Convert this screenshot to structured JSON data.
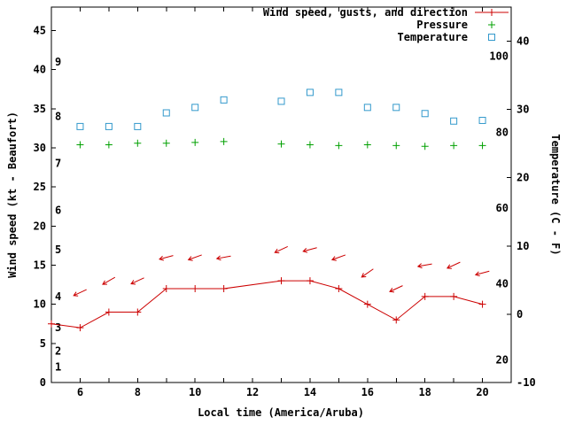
{
  "chart_data": {
    "type": "line",
    "title": "",
    "xlabel": "Local time (America/Aruba)",
    "ylabel_left": "Wind speed (kt - Beaufort)",
    "ylabel_right": "Temperature (C - F)",
    "x_range": [
      5,
      21
    ],
    "x_tick_hours": [
      5,
      6,
      7,
      8,
      9,
      10,
      11,
      12,
      13,
      14,
      15,
      16,
      17,
      18,
      19,
      20,
      21
    ],
    "x_ticks_labeled": [
      6,
      8,
      10,
      12,
      14,
      16,
      18,
      20
    ],
    "y_left_range": [
      0,
      48
    ],
    "y_left_ticks": [
      0,
      5,
      10,
      15,
      20,
      25,
      30,
      35,
      40,
      45
    ],
    "beaufort_scale_labels": [
      {
        "label": "1",
        "kt": 2
      },
      {
        "label": "2",
        "kt": 4
      },
      {
        "label": "3",
        "kt": 7
      },
      {
        "label": "4",
        "kt": 11
      },
      {
        "label": "5",
        "kt": 17
      },
      {
        "label": "6",
        "kt": 22
      },
      {
        "label": "7",
        "kt": 28
      },
      {
        "label": "8",
        "kt": 34
      },
      {
        "label": "9",
        "kt": 41
      }
    ],
    "y_right_range": [
      -10,
      45
    ],
    "y_right_ticks": [
      -10,
      0,
      10,
      20,
      30,
      40
    ],
    "fahrenheit_labels": [
      20,
      40,
      60,
      80,
      100
    ],
    "grid": false,
    "legend_position": "top-right-inside",
    "legend": [
      {
        "label": "Wind speed, gusts, and direction",
        "marker": "line-plus",
        "series": "wind"
      },
      {
        "label": "Pressure",
        "marker": "plus",
        "series": "pressure"
      },
      {
        "label": "Temperature",
        "marker": "open-square",
        "series": "temperature"
      }
    ],
    "series": {
      "wind_speed": {
        "hours": [
          5,
          6,
          7,
          8,
          9,
          10,
          11,
          13,
          14,
          15,
          16,
          17,
          18,
          19,
          20
        ],
        "kt": [
          7.5,
          7,
          9,
          9,
          12,
          12,
          12,
          13,
          13,
          12,
          10,
          8,
          11,
          11,
          10
        ]
      },
      "gusts": {
        "hours": [
          6,
          7,
          8,
          9,
          10,
          11,
          13,
          14,
          15,
          16,
          17,
          18,
          19,
          20
        ],
        "kt": [
          11.5,
          13,
          13,
          16,
          16,
          16,
          17,
          17,
          16,
          14,
          12,
          15,
          15,
          14
        ],
        "arrow_angles_deg": [
          205,
          210,
          205,
          195,
          200,
          190,
          205,
          195,
          200,
          215,
          205,
          190,
          205,
          195
        ]
      },
      "pressure": {
        "hours": [
          6,
          7,
          8,
          9,
          10,
          11,
          13,
          14,
          15,
          16,
          17,
          18,
          19,
          20
        ],
        "left_axis_values": [
          30.4,
          30.4,
          30.6,
          30.6,
          30.7,
          30.8,
          30.5,
          30.4,
          30.3,
          30.4,
          30.3,
          30.2,
          30.3,
          30.3
        ]
      },
      "temperature": {
        "hours": [
          6,
          7,
          8,
          9,
          10,
          11,
          13,
          14,
          15,
          16,
          17,
          18,
          19,
          20
        ],
        "celsius": [
          27.5,
          27.5,
          27.5,
          29.5,
          30.3,
          31.4,
          31.2,
          32.5,
          32.5,
          30.3,
          30.3,
          29.4,
          28.3,
          28.4
        ]
      }
    }
  },
  "colors": {
    "wind": "#cc0000",
    "pressure": "#00a000",
    "temperature": "#3399cc",
    "axis": "#000000",
    "text": "#000000",
    "background": "#ffffff"
  }
}
